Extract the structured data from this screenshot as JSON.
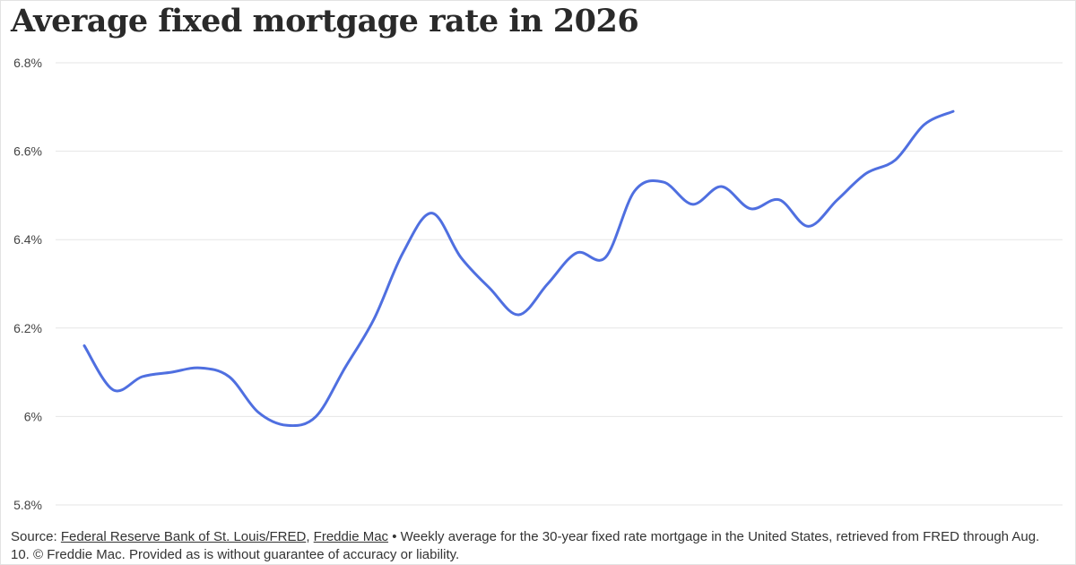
{
  "chart_data": {
    "type": "line",
    "title": "Average fixed mortgage rate in 2026",
    "xlabel": "",
    "ylabel": "",
    "ylim": [
      5.8,
      6.8
    ],
    "y_ticks": [
      "6.8%",
      "6.6%",
      "6.4%",
      "6.2%",
      "6%",
      "5.8%"
    ],
    "y_tick_values": [
      6.8,
      6.6,
      6.4,
      6.2,
      6.0,
      5.8
    ],
    "grid": true,
    "line_color": "#4f6fe0",
    "series": [
      {
        "values": [
          6.16,
          6.06,
          6.09,
          6.1,
          6.11,
          6.09,
          6.01,
          5.98,
          6.0,
          6.11,
          6.22,
          6.37,
          6.46,
          6.36,
          6.29,
          6.23,
          6.3,
          6.37,
          6.36,
          6.51,
          6.53,
          6.48,
          6.52,
          6.47,
          6.49,
          6.43,
          6.49,
          6.55,
          6.58,
          6.66,
          6.69
        ]
      }
    ]
  },
  "source": {
    "prefix": "Source: ",
    "link1": "Federal Reserve Bank of St. Louis/FRED",
    "separator": ", ",
    "link2": "Freddie Mac",
    "note": " • Weekly average for the 30-year fixed rate mortgage in the United States, retrieved from FRED through Aug. 10. © Freddie Mac. Provided as is without guarantee of accuracy or liability."
  }
}
